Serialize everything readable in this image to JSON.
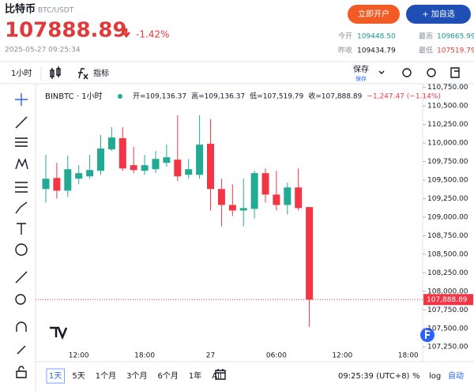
{
  "header": {
    "name": "比特币",
    "pair": "BTC/USDT",
    "price": "107888.89",
    "change": "-1.42%",
    "datetime": "2025-05-27 09:25:34",
    "buttons": [
      "立即开户",
      "+ 加自选"
    ],
    "stats": [
      {
        "label": "今开",
        "value": "109448.50"
      },
      {
        "label": "最高",
        "value": "109665.99"
      },
      {
        "label": "昨收",
        "value": "109434.79"
      },
      {
        "label": "最低",
        "value": "107519.79"
      }
    ]
  },
  "toolbar": {
    "interval": "1小时",
    "indicators": "指标",
    "save": "保存",
    "save_sub": "保存"
  },
  "chart_data": {
    "type": "candlestick",
    "title": "BINBTC · 1小时",
    "legend_ohlc": [
      "开=109,136.37",
      "高=109,136.37",
      "低=107,519.79",
      "收=107,888.89",
      "−1,247.47 (−1.14%)"
    ],
    "categories": [
      null,
      null,
      null,
      "12:00",
      null,
      null,
      null,
      null,
      null,
      "18:00",
      null,
      null,
      null,
      null,
      null,
      "27",
      null,
      null,
      null,
      null,
      null,
      "06:00",
      null,
      null,
      null,
      null,
      null,
      "12:00",
      null,
      null,
      null,
      null,
      null,
      "18:00",
      null,
      null,
      null
    ],
    "open": [
      109380,
      109529,
      109358,
      109519,
      109551,
      109626,
      109915,
      110065,
      109701,
      109626,
      109647,
      109733,
      109776,
      109572,
      109572,
      109990,
      109380,
      109165,
      109090,
      109112,
      109594,
      109305,
      109165,
      109401,
      109136.37,
      null,
      null,
      null,
      null,
      null,
      null,
      null,
      null,
      null,
      null,
      null,
      null
    ],
    "high": [
      109840,
      109733,
      109829,
      109701,
      109840,
      110108,
      110215,
      110215,
      109947,
      109840,
      109893,
      109979,
      110375,
      109786,
      110375,
      110322,
      109519,
      109444,
      109519,
      109626,
      109658,
      109626,
      109465,
      109658,
      109136.37,
      null,
      null,
      null,
      null,
      null,
      null,
      null,
      null,
      null,
      null,
      null,
      null
    ],
    "low": [
      109197,
      109251,
      109272,
      109444,
      109519,
      109572,
      109893,
      109626,
      109594,
      109572,
      109594,
      109679,
      109487,
      109519,
      109519,
      109090,
      108876,
      109015,
      108876,
      108983,
      109197,
      109090,
      109037,
      109090,
      107519.79,
      null,
      null,
      null,
      null,
      null,
      null,
      null,
      null,
      null,
      null,
      null,
      null
    ],
    "close": [
      109519,
      109358,
      109647,
      109594,
      109636,
      109926,
      110075,
      109658,
      109636,
      109701,
      109786,
      109808,
      109551,
      109647,
      109979,
      109380,
      109165,
      109090,
      109123,
      109594,
      109305,
      109165,
      109401,
      109123,
      107888.89,
      null,
      null,
      null,
      null,
      null,
      null,
      null,
      null,
      null,
      null,
      null,
      null
    ],
    "up_color": "#22ab94",
    "down_color": "#f23645",
    "last_price_label": "107,888.89",
    "ylim": [
      107050,
      110800
    ],
    "yticks": [
      {
        "value": 107250,
        "label": "107,250.00"
      },
      {
        "value": 107500,
        "label": "107,500.00"
      },
      {
        "value": 107750,
        "label": "107,750.00"
      },
      {
        "value": 108000,
        "label": "108,000.00"
      },
      {
        "value": 108250,
        "label": "108,250.00"
      },
      {
        "value": 108500,
        "label": "108,500.00"
      },
      {
        "value": 108750,
        "label": "108,750.00"
      },
      {
        "value": 109000,
        "label": "109,000.00"
      },
      {
        "value": 109250,
        "label": "109,250.00"
      },
      {
        "value": 109500,
        "label": "109,500.00"
      },
      {
        "value": 109750,
        "label": "109,750.00"
      },
      {
        "value": 110000,
        "label": "110,000.00"
      },
      {
        "value": 110250,
        "label": "110,250.00"
      },
      {
        "value": 110500,
        "label": "110,500.00"
      },
      {
        "value": 110750,
        "label": "110,750.00"
      }
    ]
  },
  "footer": {
    "ranges": [
      "1天",
      "5天",
      "1个月",
      "3个月",
      "6个月",
      "1年",
      "All"
    ],
    "time": "09:25:39 (UTC+8)",
    "percent": "%",
    "log": "log",
    "auto": "自动"
  }
}
